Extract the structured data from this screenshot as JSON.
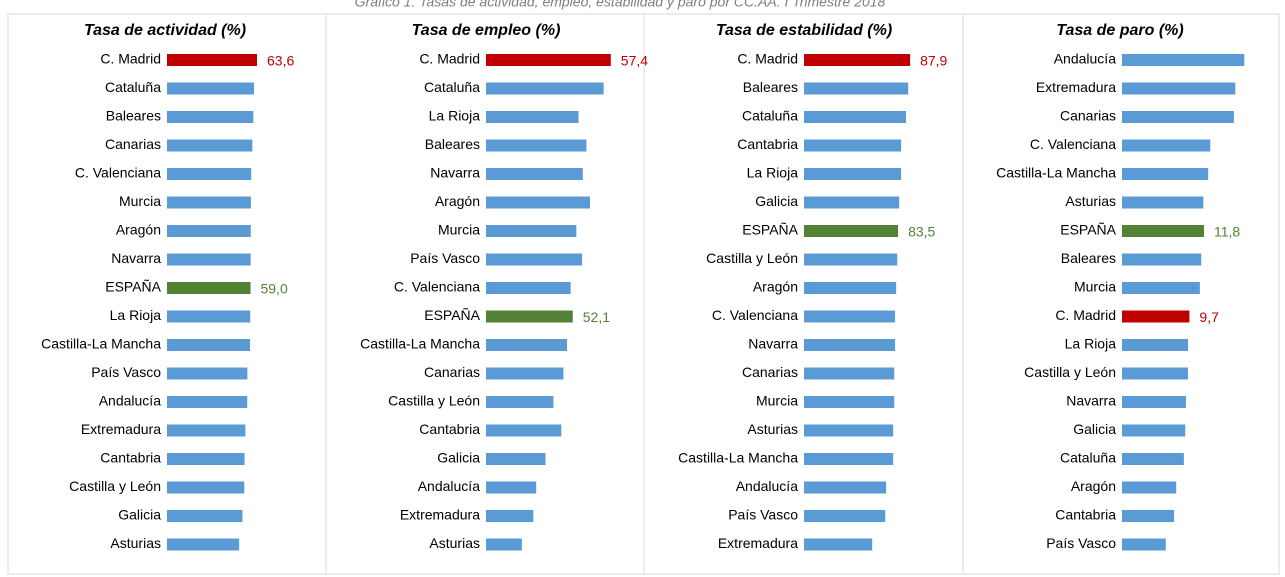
{
  "title": "Gráfico 1. Tasas de actividad, empleo, estabilidad y paro por CC.AA. I Trimestre 2018",
  "chart_data": [
    {
      "type": "bar",
      "title": "Tasa de actividad (%)",
      "categories": [
        "C. Madrid",
        "Cataluña",
        "Baleares",
        "Canarias",
        "C. Valenciana",
        "Murcia",
        "Aragón",
        "Navarra",
        "ESPAÑA",
        "La Rioja",
        "Castilla-La Mancha",
        "País Vasco",
        "Andalucía",
        "Extremadura",
        "Cantabria",
        "Castilla y León",
        "Galicia",
        "Asturias"
      ],
      "values": [
        63.6,
        61.5,
        61.0,
        60.3,
        59.5,
        59.3,
        59.2,
        59.1,
        59.0,
        58.8,
        58.7,
        56.8,
        56.7,
        55.4,
        54.8,
        54.6,
        53.3,
        51.0
      ],
      "value_labels": [
        "63,6",
        null,
        null,
        null,
        null,
        null,
        null,
        null,
        "59,0",
        null,
        null,
        null,
        null,
        null,
        null,
        null,
        null,
        null
      ],
      "color": "#5b9bd5",
      "highlight_colors": {
        "C. Madrid": "#c00000",
        "ESPAÑA": "#548235"
      },
      "xlim": [
        0,
        105
      ]
    },
    {
      "type": "bar",
      "title": "Tasa de empleo (%)",
      "categories": [
        "C. Madrid",
        "Cataluña",
        "La Rioja",
        "Baleares",
        "Navarra",
        "Aragón",
        "Murcia",
        "País Vasco",
        "C. Valenciana",
        "ESPAÑA",
        "Castilla-La Mancha",
        "Canarias",
        "Castilla y León",
        "Cantabria",
        "Galicia",
        "Andalucía",
        "Extremadura",
        "Asturias"
      ],
      "values": [
        57.4,
        56.4,
        52.9,
        54.0,
        53.5,
        54.5,
        52.6,
        53.4,
        51.8,
        52.1,
        51.3,
        50.8,
        49.4,
        50.5,
        48.3,
        47.0,
        46.6,
        45.0
      ],
      "value_labels": [
        "57,4",
        null,
        null,
        null,
        null,
        null,
        null,
        null,
        null,
        "52,1",
        null,
        null,
        null,
        null,
        null,
        null,
        null,
        null
      ],
      "color": "#5b9bd5",
      "highlight_colors": {
        "C. Madrid": "#c00000",
        "ESPAÑA": "#548235"
      },
      "xlim": [
        40,
        61
      ]
    },
    {
      "type": "bar",
      "title": "Tasa de estabilidad (%)",
      "categories": [
        "C. Madrid",
        "Baleares",
        "Cataluña",
        "Cantabria",
        "La Rioja",
        "Galicia",
        "ESPAÑA",
        "Castilla y León",
        "Aragón",
        "C. Valenciana",
        "Navarra",
        "Canarias",
        "Murcia",
        "Asturias",
        "Castilla-La Mancha",
        "Andalucía",
        "País Vasco",
        "Extremadura"
      ],
      "values": [
        87.9,
        87.2,
        86.4,
        84.6,
        84.6,
        83.9,
        83.5,
        83.2,
        82.8,
        82.4,
        82.4,
        82.1,
        82.1,
        81.7,
        81.7,
        79.1,
        78.8,
        74.0
      ],
      "value_labels": [
        "87,9",
        null,
        null,
        null,
        null,
        null,
        "83,5",
        null,
        null,
        null,
        null,
        null,
        null,
        null,
        null,
        null,
        null,
        null
      ],
      "color": "#5b9bd5",
      "highlight_colors": {
        "C. Madrid": "#c00000",
        "ESPAÑA": "#548235"
      },
      "xlim": [
        49,
        104
      ]
    },
    {
      "type": "bar",
      "title": "Tasa de paro (%)",
      "categories": [
        "Andalucía",
        "Extremadura",
        "Canarias",
        "C. Valenciana",
        "Castilla-La Mancha",
        "Asturias",
        "ESPAÑA",
        "Baleares",
        "Murcia",
        "C. Madrid",
        "La Rioja",
        "Castilla y León",
        "Navarra",
        "Galicia",
        "Cataluña",
        "Aragón",
        "Cantabria",
        "País Vasco"
      ],
      "values": [
        17.6,
        16.3,
        16.1,
        12.7,
        12.4,
        11.7,
        11.8,
        11.4,
        11.2,
        9.7,
        9.5,
        9.5,
        9.2,
        9.1,
        8.9,
        7.8,
        7.5,
        6.3
      ],
      "value_labels": [
        null,
        null,
        null,
        null,
        null,
        null,
        "11,8",
        null,
        null,
        "9,7",
        null,
        null,
        null,
        null,
        null,
        null,
        null,
        null
      ],
      "color": "#5b9bd5",
      "highlight_colors": {
        "C. Madrid": "#c00000",
        "ESPAÑA": "#548235"
      },
      "xlim": [
        0,
        22
      ]
    }
  ]
}
